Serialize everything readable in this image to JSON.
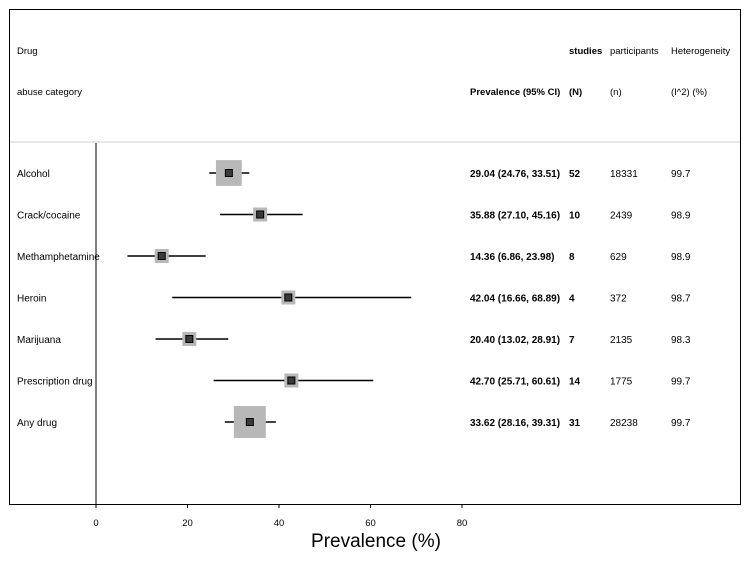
{
  "chart_data": {
    "type": "forest",
    "headers": {
      "drug_line1": "Drug",
      "drug_line2": "abuse category",
      "prevalence": "Prevalence (95% CI)",
      "studies_line1": "studies",
      "studies_line2": "(N)",
      "participants_line1": "participants",
      "participants_line2": "(n)",
      "het_line1": "Heterogeneity",
      "het_line2": "(I^2) (%)"
    },
    "rows": [
      {
        "label": "Alcohol",
        "estimate": 29.04,
        "lower": 24.76,
        "upper": 33.51,
        "ci_text": "29.04 (24.76, 33.51)",
        "studies": "52",
        "participants": "18331",
        "heterogeneity": "99.7"
      },
      {
        "label": "Crack/cocaine",
        "estimate": 35.88,
        "lower": 27.1,
        "upper": 45.16,
        "ci_text": "35.88 (27.10, 45.16)",
        "studies": "10",
        "participants": "2439",
        "heterogeneity": "98.9"
      },
      {
        "label": "Methamphetamine",
        "estimate": 14.36,
        "lower": 6.86,
        "upper": 23.98,
        "ci_text": "14.36 (6.86, 23.98)",
        "studies": "8",
        "participants": "629",
        "heterogeneity": "98.9"
      },
      {
        "label": "Heroin",
        "estimate": 42.04,
        "lower": 16.66,
        "upper": 68.89,
        "ci_text": "42.04 (16.66, 68.89)",
        "studies": "4",
        "participants": "372",
        "heterogeneity": "98.7"
      },
      {
        "label": "Marijuana",
        "estimate": 20.4,
        "lower": 13.02,
        "upper": 28.91,
        "ci_text": "20.40 (13.02, 28.91)",
        "studies": "7",
        "participants": "2135",
        "heterogeneity": "98.3"
      },
      {
        "label": "Prescription drug",
        "estimate": 42.7,
        "lower": 25.71,
        "upper": 60.61,
        "ci_text": "42.70 (25.71, 60.61)",
        "studies": "14",
        "participants": "1775",
        "heterogeneity": "99.7"
      },
      {
        "label": "Any drug",
        "estimate": 33.62,
        "lower": 28.16,
        "upper": 39.31,
        "ci_text": "33.62 (28.16, 39.31)",
        "studies": "31",
        "participants": "28238",
        "heterogeneity": "99.7"
      }
    ],
    "xticks": [
      0,
      20,
      40,
      60,
      80
    ],
    "xlabel": "Prevalence (%)",
    "xlim": [
      0,
      80
    ],
    "colors": {
      "weight_box": "#b8b8b8",
      "point": "#3a3a3a",
      "line": "#000000"
    }
  }
}
